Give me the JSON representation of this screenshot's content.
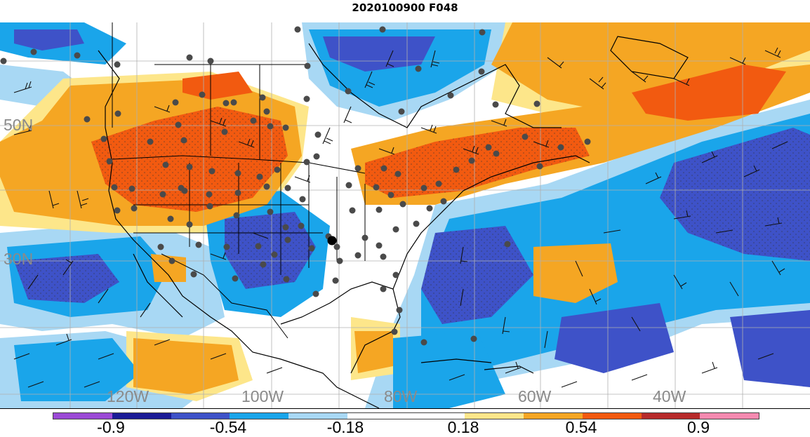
{
  "title": "2020100900 F048",
  "lat_labels": [
    "50N",
    "30N"
  ],
  "lon_labels": [
    "120W",
    "100W",
    "80W",
    "60W",
    "40W"
  ],
  "colorbar": {
    "labels": [
      "-0.9",
      "-0.54",
      "-0.18",
      "0.18",
      "0.54",
      "0.9"
    ],
    "colors": [
      "#9b4ad6",
      "#1b1b96",
      "#3e52c8",
      "#1aa5ea",
      "#a8d8f4",
      "#ffffff",
      "#ffffff",
      "#fde68a",
      "#f5a623",
      "#f25a10",
      "#b72b2b",
      "#f58ab0"
    ]
  },
  "field_colors": {
    "strong_positive": "#f25a10",
    "positive": "#f5a623",
    "weak_positive": "#fde68a",
    "neutral": "#ffffff",
    "weak_negative": "#a8d8f4",
    "negative": "#1aa5ea",
    "strong_negative": "#3e52c8"
  },
  "overlays": [
    "coastlines",
    "state-borders",
    "wind-barbs",
    "station-dots",
    "significance-stippling"
  ]
}
